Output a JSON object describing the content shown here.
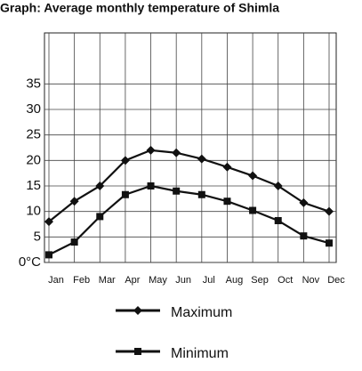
{
  "chart_data": {
    "type": "line",
    "title": "Graph: Average monthly temperature of Shimla",
    "categories": [
      "Jan",
      "Feb",
      "Mar",
      "Apr",
      "May",
      "Jun",
      "Jul",
      "Aug",
      "Sep",
      "Oct",
      "Nov",
      "Dec"
    ],
    "series": [
      {
        "name": "Maximum",
        "color": "#111111",
        "marker": "diamond",
        "values": [
          8,
          12,
          15,
          20,
          22,
          21.5,
          20.3,
          18.7,
          17,
          15,
          11.7,
          10
        ]
      },
      {
        "name": "Minimum",
        "color": "#111111",
        "marker": "square",
        "values": [
          1.5,
          4,
          9,
          13.3,
          15,
          14,
          13.3,
          12,
          10.2,
          8.2,
          5.2,
          3.8
        ]
      }
    ],
    "ylim": [
      0,
      45
    ],
    "yticks": [
      {
        "value": 0,
        "label": "0°C"
      },
      5,
      10,
      15,
      20,
      25,
      30,
      35
    ],
    "grid": true
  }
}
